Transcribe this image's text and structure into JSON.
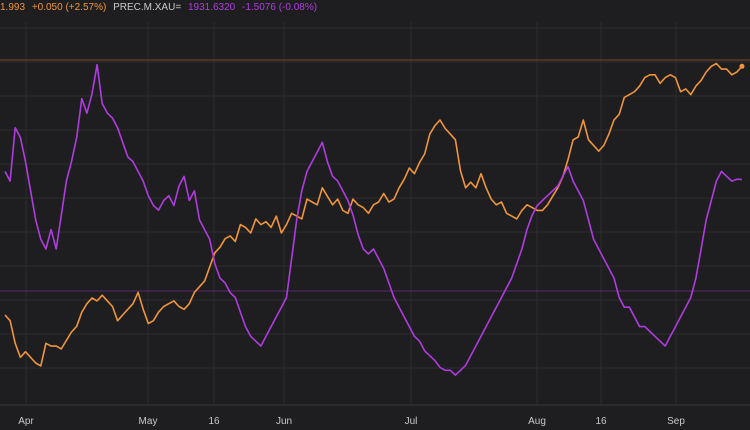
{
  "legend": {
    "series1_price": "1.993",
    "series1_change": "+0.050 (+2.57%)",
    "series2_name": "PREC.M.XAU=",
    "series2_price": "1931.6320",
    "series2_change": "-1.5076 (-0.08%)"
  },
  "colors": {
    "background": "#1e1e20",
    "grid": "#2c2c2e",
    "series1": "#f0953a",
    "series2": "#b03ce0",
    "text": "#c9c9c9"
  },
  "chart_data": {
    "type": "line",
    "x_tick_labels": [
      "Apr",
      "May",
      "16",
      "Jun",
      "Jul",
      "Aug",
      "16",
      "Sep"
    ],
    "grid": true,
    "series": [
      {
        "values": [
          31,
          29,
          21,
          16,
          18,
          16,
          14,
          13,
          21,
          20,
          20,
          19,
          22,
          25,
          27,
          32,
          35,
          37,
          36,
          38,
          36,
          34,
          29,
          31,
          33,
          35,
          39,
          33,
          28,
          29,
          32,
          34,
          35,
          36,
          34,
          33,
          35,
          39,
          41,
          43,
          48,
          53,
          55,
          58,
          59,
          57,
          63,
          62,
          60,
          65,
          63,
          64,
          62,
          66,
          60,
          63,
          67,
          66,
          65,
          72,
          71,
          70,
          76,
          73,
          70,
          72,
          68,
          67,
          72,
          70,
          69,
          67,
          70,
          71,
          74,
          71,
          72,
          76,
          79,
          83,
          81,
          85,
          88,
          95,
          98,
          100,
          97,
          95,
          93,
          82,
          76,
          78,
          76,
          81,
          76,
          72,
          70,
          71,
          67,
          66,
          65,
          68,
          70,
          69,
          68,
          68,
          70,
          73,
          76,
          80,
          86,
          93,
          94,
          100,
          93,
          91,
          89,
          91,
          95,
          100,
          102,
          108,
          109,
          110,
          112,
          115,
          116,
          116,
          113,
          115,
          116,
          115,
          110,
          111,
          109,
          112,
          114,
          117,
          119,
          120,
          118,
          118,
          116,
          117,
          119
        ],
        "color": "#f0953a"
      },
      {
        "values": [
          1940,
          1930,
          1985,
          1975,
          1950,
          1920,
          1890,
          1870,
          1860,
          1880,
          1860,
          1895,
          1930,
          1950,
          1975,
          2015,
          2000,
          2020,
          2050,
          2010,
          2000,
          1995,
          1985,
          1970,
          1955,
          1950,
          1940,
          1930,
          1915,
          1905,
          1900,
          1910,
          1915,
          1905,
          1925,
          1935,
          1910,
          1920,
          1890,
          1880,
          1870,
          1845,
          1830,
          1825,
          1815,
          1810,
          1795,
          1780,
          1770,
          1765,
          1760,
          1770,
          1780,
          1790,
          1800,
          1810,
          1850,
          1890,
          1920,
          1940,
          1950,
          1960,
          1970,
          1950,
          1935,
          1930,
          1920,
          1910,
          1895,
          1875,
          1860,
          1855,
          1860,
          1850,
          1840,
          1825,
          1810,
          1800,
          1790,
          1780,
          1770,
          1765,
          1755,
          1750,
          1745,
          1738,
          1735,
          1735,
          1730,
          1735,
          1740,
          1750,
          1760,
          1770,
          1780,
          1790,
          1800,
          1810,
          1820,
          1830,
          1845,
          1860,
          1880,
          1895,
          1905,
          1910,
          1915,
          1920,
          1925,
          1935,
          1945,
          1930,
          1920,
          1910,
          1890,
          1870,
          1860,
          1850,
          1840,
          1830,
          1810,
          1800,
          1800,
          1790,
          1780,
          1780,
          1775,
          1770,
          1765,
          1760,
          1770,
          1780,
          1790,
          1800,
          1810,
          1830,
          1860,
          1890,
          1910,
          1930,
          1940,
          1935,
          1930,
          1932,
          1931.632
        ],
        "color": "#b03ce0"
      }
    ]
  }
}
